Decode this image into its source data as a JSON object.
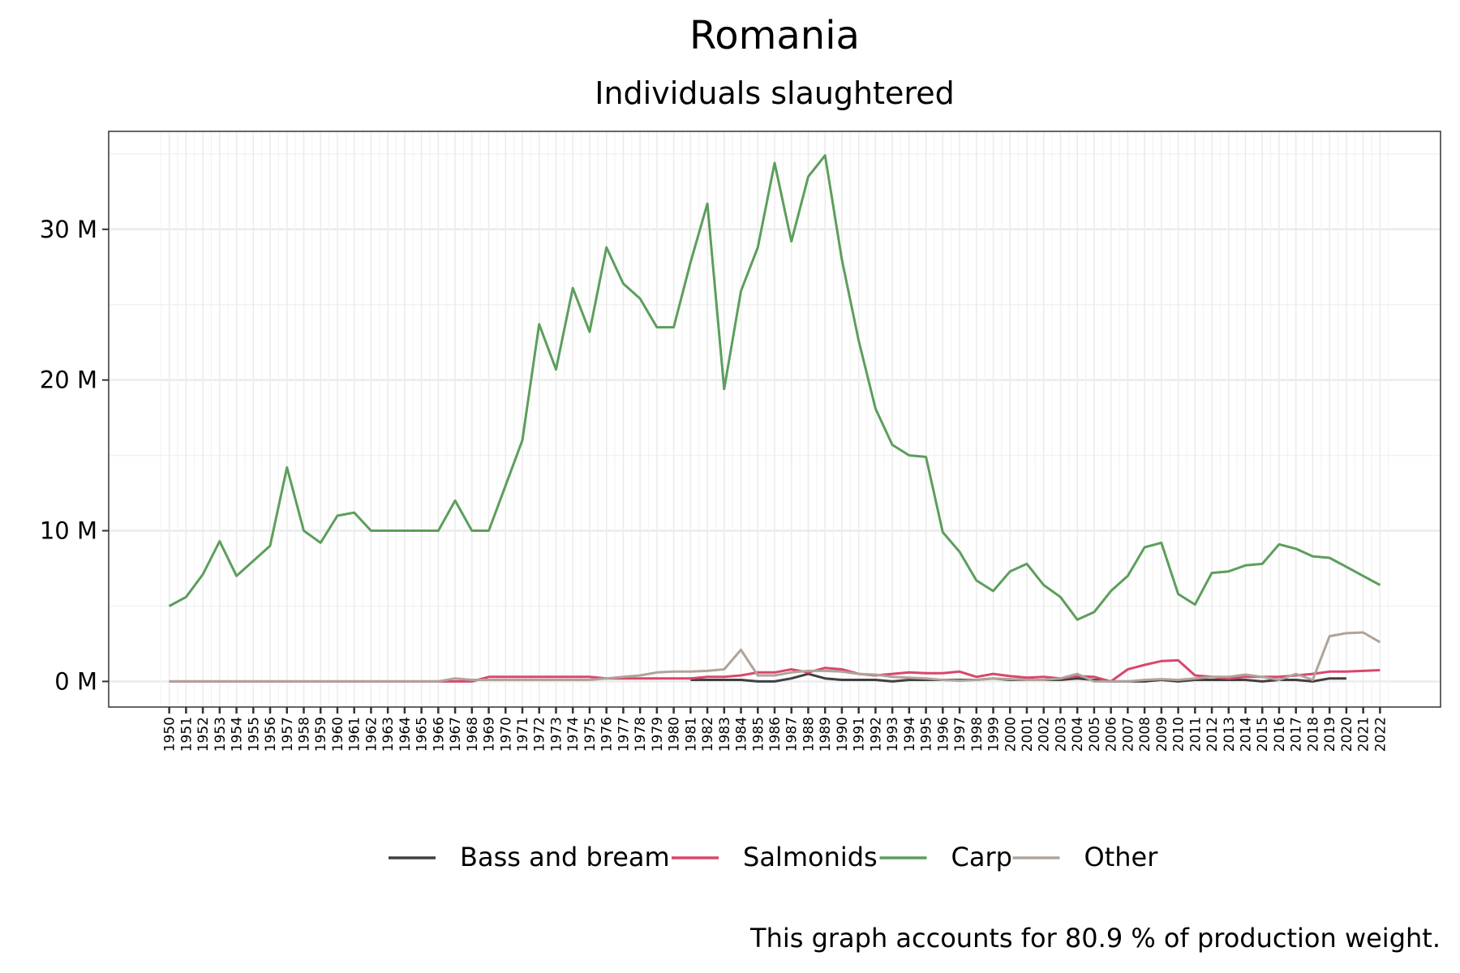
{
  "chart_data": {
    "type": "line",
    "title": "Romania",
    "subtitle": "Individuals slaughtered",
    "caption": "This graph accounts for 80.9 % of production weight.",
    "x": [
      1950,
      1951,
      1952,
      1953,
      1954,
      1955,
      1956,
      1957,
      1958,
      1959,
      1960,
      1961,
      1962,
      1963,
      1964,
      1965,
      1966,
      1967,
      1968,
      1969,
      1970,
      1971,
      1972,
      1973,
      1974,
      1975,
      1976,
      1977,
      1978,
      1979,
      1980,
      1981,
      1982,
      1983,
      1984,
      1985,
      1986,
      1987,
      1988,
      1989,
      1990,
      1991,
      1992,
      1993,
      1994,
      1995,
      1996,
      1997,
      1998,
      1999,
      2000,
      2001,
      2002,
      2003,
      2004,
      2005,
      2006,
      2007,
      2008,
      2009,
      2010,
      2011,
      2012,
      2013,
      2014,
      2015,
      2016,
      2017,
      2018,
      2019,
      2020,
      2021,
      2022
    ],
    "xlim": [
      1946.4,
      2025.6
    ],
    "ylim": [
      -1.7,
      36.5
    ],
    "yticks": [
      {
        "value": 0,
        "label": "0 M"
      },
      {
        "value": 10,
        "label": "10 M"
      },
      {
        "value": 20,
        "label": "20 M"
      },
      {
        "value": 30,
        "label": "30 M"
      }
    ],
    "grid": true,
    "legend": "bottom",
    "series": [
      {
        "name": "Bass and bream",
        "color": "#404040",
        "values": [
          null,
          null,
          null,
          null,
          null,
          null,
          null,
          null,
          null,
          null,
          null,
          null,
          null,
          null,
          null,
          null,
          null,
          null,
          null,
          null,
          null,
          null,
          null,
          null,
          null,
          null,
          null,
          null,
          null,
          null,
          null,
          0.1,
          0.1,
          0.1,
          0.1,
          0.0,
          0.0,
          0.2,
          0.5,
          0.2,
          0.1,
          0.1,
          0.1,
          0.0,
          0.1,
          0.1,
          0.1,
          0.1,
          0.1,
          0.2,
          0.1,
          0.1,
          0.1,
          0.1,
          0.2,
          0.1,
          0.0,
          0.0,
          0.0,
          0.1,
          0.0,
          0.1,
          0.1,
          0.1,
          0.1,
          0.0,
          0.1,
          0.1,
          0.0,
          0.2,
          0.2,
          null,
          null
        ]
      },
      {
        "name": "Salmonids",
        "color": "#d9476b",
        "values": [
          0,
          0,
          0,
          0,
          0,
          0,
          0,
          0,
          0,
          0,
          0,
          0,
          0,
          0,
          0,
          0,
          0,
          0,
          0,
          0.3,
          0.3,
          0.3,
          0.3,
          0.3,
          0.3,
          0.3,
          0.2,
          0.2,
          0.2,
          0.2,
          0.2,
          0.2,
          0.3,
          0.3,
          0.4,
          0.6,
          0.6,
          0.8,
          0.6,
          0.9,
          0.8,
          0.5,
          0.4,
          0.5,
          0.6,
          0.55,
          0.55,
          0.65,
          0.3,
          0.5,
          0.35,
          0.25,
          0.3,
          0.2,
          0.35,
          0.3,
          0.0,
          0.8,
          1.1,
          1.35,
          1.4,
          0.4,
          0.3,
          0.2,
          0.3,
          0.3,
          0.3,
          0.4,
          0.5,
          0.65,
          0.65,
          0.7,
          0.75
        ]
      },
      {
        "name": "Carp",
        "color": "#5c9e5c",
        "values": [
          5.0,
          5.6,
          7.1,
          9.3,
          7.0,
          8.0,
          9.0,
          14.2,
          10.0,
          9.2,
          11.0,
          11.2,
          10.0,
          10.0,
          10.0,
          10.0,
          10.0,
          12.0,
          10.0,
          10.0,
          13.0,
          16.0,
          23.7,
          20.7,
          26.1,
          23.2,
          28.8,
          26.4,
          25.4,
          23.5,
          23.5,
          27.8,
          31.7,
          19.4,
          25.9,
          28.8,
          34.4,
          29.2,
          33.5,
          34.9,
          28.0,
          22.6,
          18.1,
          15.7,
          15.0,
          14.9,
          9.9,
          8.6,
          6.7,
          6.0,
          7.3,
          7.8,
          6.4,
          5.6,
          4.1,
          4.6,
          6.0,
          7.0,
          8.9,
          9.2,
          5.8,
          5.1,
          7.2,
          7.3,
          7.7,
          7.8,
          9.1,
          8.8,
          8.3,
          8.2,
          7.6,
          7.0,
          6.4
        ]
      },
      {
        "name": "Other",
        "color": "#b0a39a",
        "values": [
          0,
          0,
          0,
          0,
          0,
          0,
          0,
          0,
          0,
          0,
          0,
          0,
          0,
          0,
          0,
          0,
          0,
          0.2,
          0.1,
          0.1,
          0.1,
          0.1,
          0.1,
          0.1,
          0.1,
          0.1,
          0.2,
          0.3,
          0.4,
          0.6,
          0.65,
          0.65,
          0.7,
          0.8,
          2.1,
          0.4,
          0.4,
          0.6,
          0.7,
          0.7,
          0.65,
          0.5,
          0.45,
          0.3,
          0.25,
          0.2,
          0.1,
          0.05,
          0.1,
          0.2,
          0.15,
          0.1,
          0.1,
          0.2,
          0.5,
          0.0,
          0.0,
          0.0,
          0.1,
          0.15,
          0.1,
          0.2,
          0.3,
          0.3,
          0.45,
          0.3,
          0.1,
          0.5,
          0.1,
          3.0,
          3.2,
          3.25,
          2.6
        ]
      }
    ]
  }
}
